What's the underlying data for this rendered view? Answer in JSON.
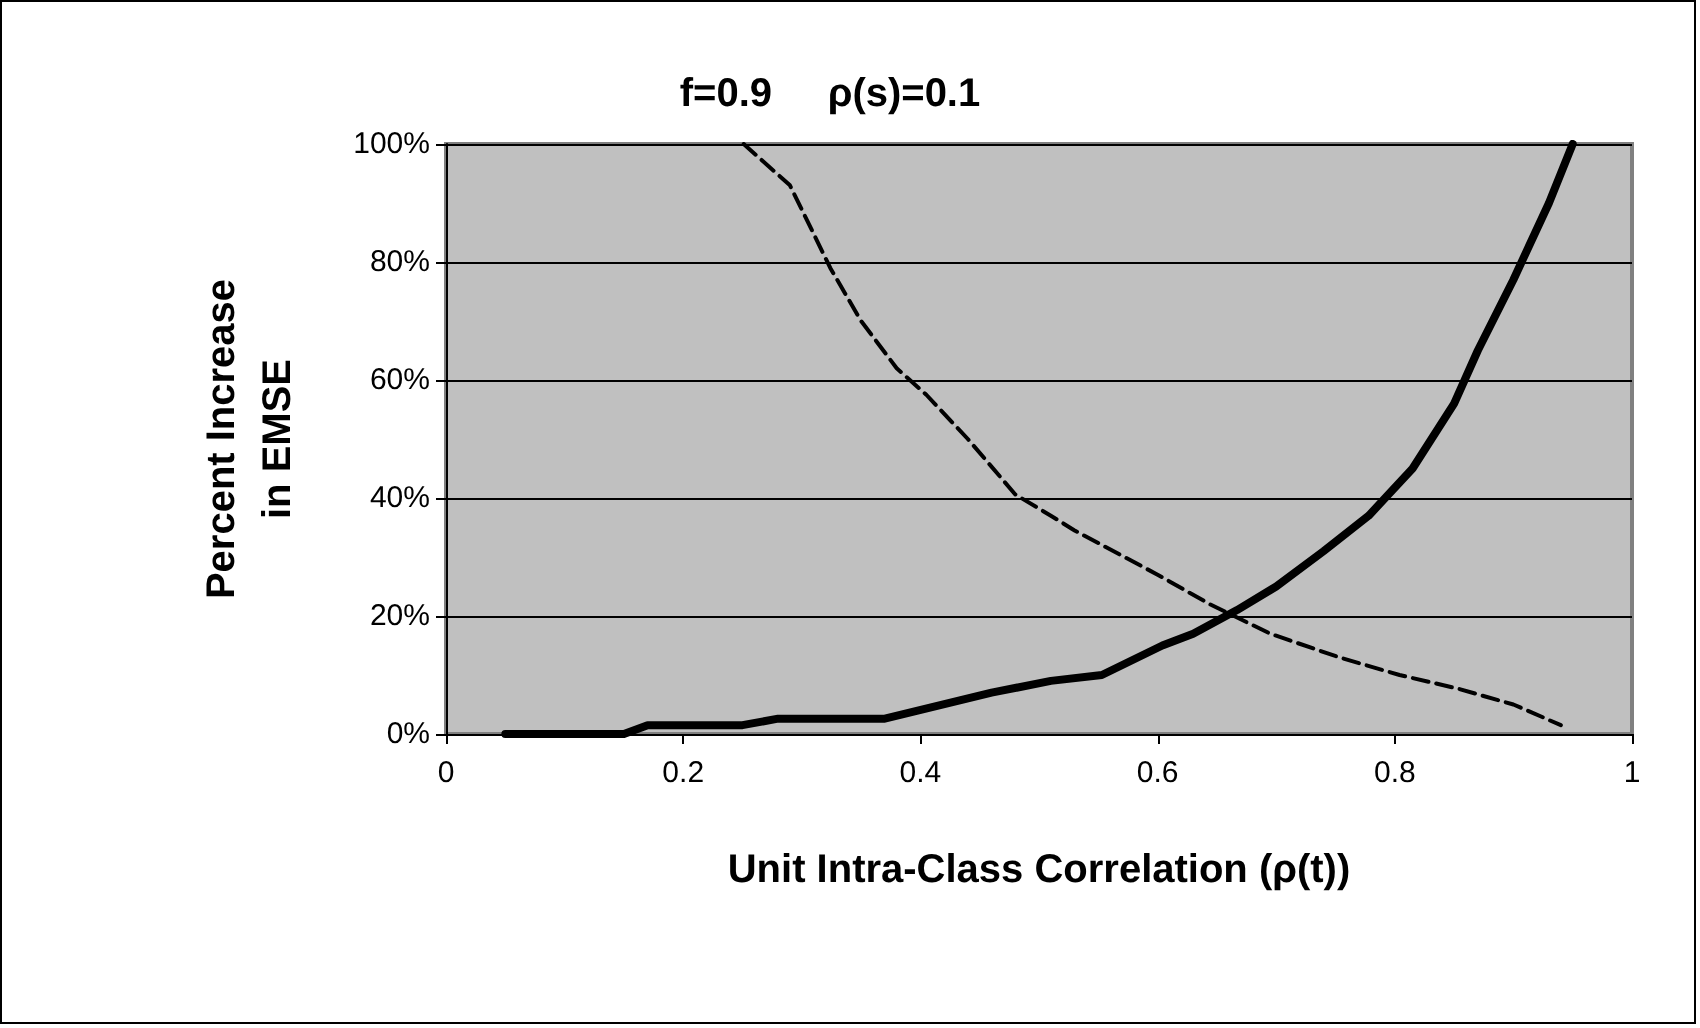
{
  "chart_data": {
    "type": "line",
    "title": "f=0.9     ρ(s)=0.1",
    "xlabel": "Unit Intra-Class Correlation (ρ(t))",
    "ylabel": "Percent Increase in EMSE",
    "xlim": [
      0,
      1
    ],
    "xticks": [
      0,
      0.2,
      0.4,
      0.6,
      0.8,
      1
    ],
    "ylim": [
      0,
      100
    ],
    "yticks": [
      {
        "value": 0,
        "label": "0%"
      },
      {
        "value": 20,
        "label": "20%"
      },
      {
        "value": 40,
        "label": "40%"
      },
      {
        "value": 60,
        "label": "60%"
      },
      {
        "value": 80,
        "label": "80%"
      },
      {
        "value": 100,
        "label": "100%"
      }
    ],
    "grid": "y",
    "marker": "none",
    "series": [
      {
        "color": "#000000",
        "line_style": "solid",
        "x": [
          0.05,
          0.15,
          0.17,
          0.25,
          0.28,
          0.37,
          0.46,
          0.51,
          0.553,
          0.604,
          0.63,
          0.667,
          0.7,
          0.74,
          0.778,
          0.815,
          0.85,
          0.87,
          0.9,
          0.93,
          0.95
        ],
        "values": [
          0,
          0,
          1.5,
          1.5,
          2.6,
          2.6,
          7,
          9,
          10,
          15,
          17,
          21,
          25,
          31,
          37,
          45,
          56,
          65,
          77,
          90,
          100
        ]
      },
      {
        "color": "#000000",
        "line_style": "dashed",
        "x": [
          0.251,
          0.29,
          0.324,
          0.35,
          0.38,
          0.405,
          0.44,
          0.48,
          0.51,
          0.53,
          0.6,
          0.644,
          0.695,
          0.753,
          0.804,
          0.853,
          0.9,
          0.94
        ],
        "values": [
          100,
          93,
          79,
          70,
          62,
          57.5,
          50,
          40.6,
          37,
          34.5,
          27,
          22,
          17,
          13,
          10,
          7.7,
          5,
          1.5
        ]
      }
    ]
  }
}
